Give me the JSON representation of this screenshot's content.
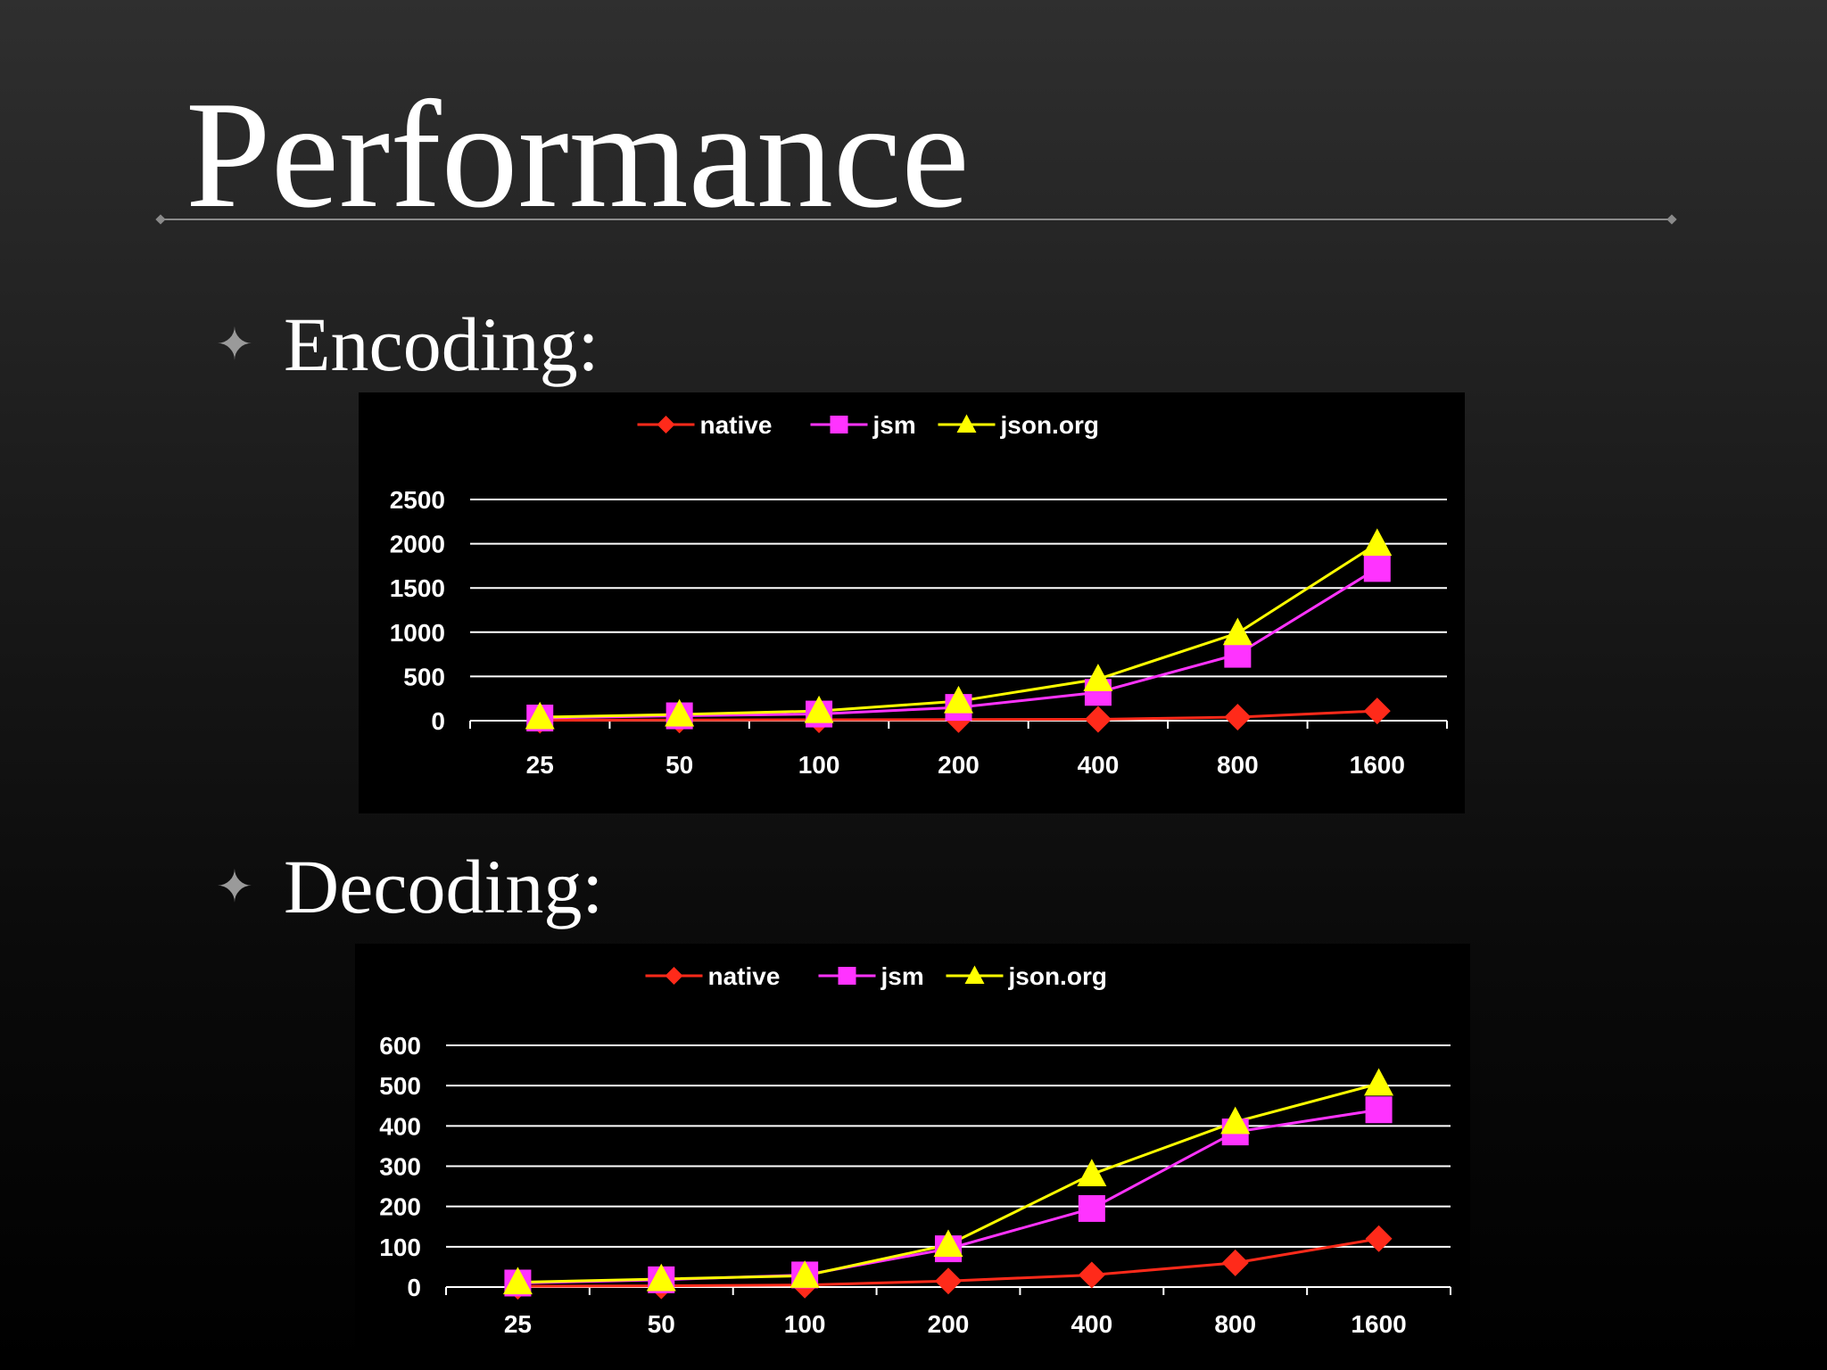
{
  "slide": {
    "title": "Performance",
    "bullet_icon": "four-point-star-icon",
    "bullets": [
      {
        "label": "Encoding:"
      },
      {
        "label": "Decoding:"
      }
    ]
  },
  "colors": {
    "native": "#ff2a1a",
    "jsm": "#ff33ff",
    "json_org": "#ffff00",
    "gridline": "#ffffff",
    "chart_background": "#000000"
  },
  "chart_data": [
    {
      "type": "line",
      "categories": [
        "25",
        "50",
        "100",
        "200",
        "400",
        "800",
        "1600"
      ],
      "ylim": [
        0,
        2500
      ],
      "yticks": [
        "0",
        "500",
        "1000",
        "1500",
        "2000",
        "2500"
      ],
      "grid": true,
      "legend": "top-center",
      "series": [
        {
          "name": "native",
          "marker": "diamond",
          "values": [
            5,
            8,
            10,
            12,
            15,
            40,
            110
          ]
        },
        {
          "name": "jsm",
          "marker": "square",
          "values": [
            30,
            55,
            75,
            150,
            320,
            750,
            1720
          ]
        },
        {
          "name": "json.org",
          "marker": "triangle",
          "values": [
            40,
            70,
            110,
            220,
            470,
            990,
            2000
          ]
        }
      ]
    },
    {
      "type": "line",
      "categories": [
        "25",
        "50",
        "100",
        "200",
        "400",
        "800",
        "1600"
      ],
      "ylim": [
        0,
        600
      ],
      "yticks": [
        "0",
        "100",
        "200",
        "300",
        "400",
        "500",
        "600"
      ],
      "grid": true,
      "legend": "top-center",
      "series": [
        {
          "name": "native",
          "marker": "diamond",
          "values": [
            2,
            3,
            5,
            15,
            30,
            60,
            120
          ]
        },
        {
          "name": "jsm",
          "marker": "square",
          "values": [
            10,
            18,
            30,
            95,
            195,
            385,
            440
          ]
        },
        {
          "name": "json.org",
          "marker": "triangle",
          "values": [
            12,
            20,
            28,
            105,
            280,
            410,
            505
          ]
        }
      ]
    }
  ]
}
